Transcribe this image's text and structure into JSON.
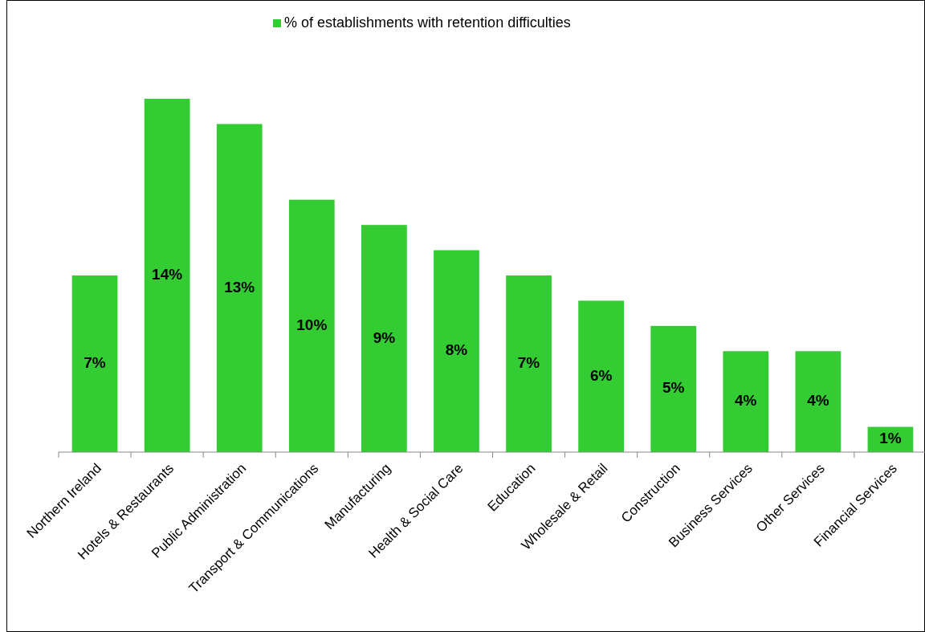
{
  "chart_data": {
    "type": "bar",
    "categories": [
      "Northern Ireland",
      "Hotels & Restaurants",
      "Public Administration",
      "Transport & Communications",
      "Manufacturing",
      "Health & Social Care",
      "Education",
      "Wholesale & Retail",
      "Construction",
      "Business Services",
      "Other Services",
      "Financial Services"
    ],
    "series": [
      {
        "name": "% of establishments with retention difficulties",
        "color": "#33cc33",
        "values": [
          7,
          14,
          13,
          10,
          9,
          8,
          7,
          6,
          5,
          4,
          4,
          1
        ],
        "value_labels": [
          "7%",
          "14%",
          "13%",
          "10%",
          "9%",
          "8%",
          "7%",
          "6%",
          "5%",
          "4%",
          "4%",
          "1%"
        ]
      }
    ],
    "legend": "top"
  }
}
